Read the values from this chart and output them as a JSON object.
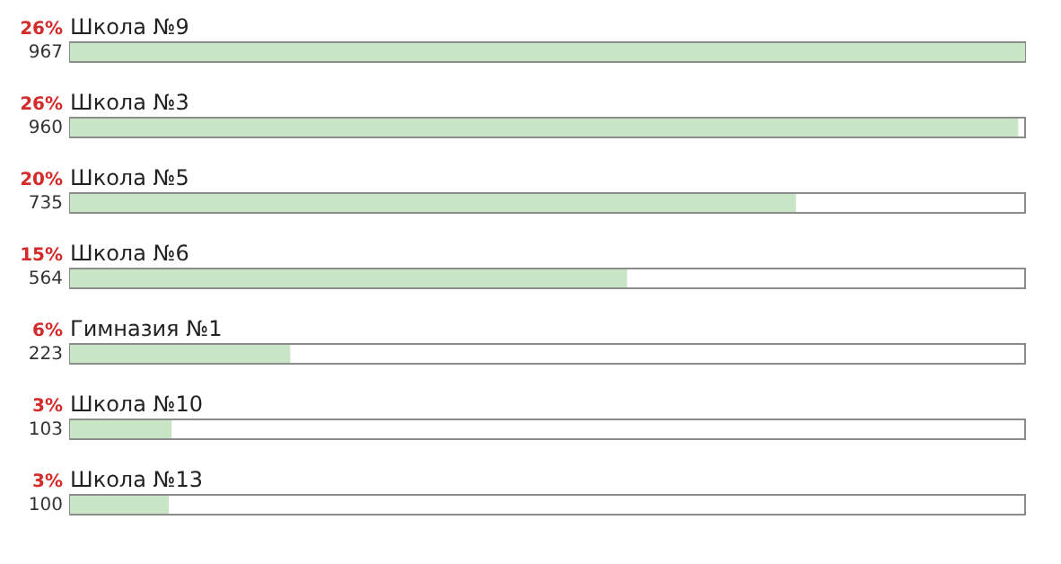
{
  "chart_data": {
    "type": "bar",
    "orientation": "horizontal",
    "categories": [
      "Школа №9",
      "Школа №3",
      "Школа №5",
      "Школа №6",
      "Гимназия №1",
      "Школа №10",
      "Школа №13"
    ],
    "values": [
      967,
      960,
      735,
      564,
      223,
      103,
      100
    ],
    "value_labels": [
      "967",
      "960",
      "735",
      "564",
      "223",
      "103",
      "100"
    ],
    "annotations": [
      "26%",
      "26%",
      "20%",
      "15%",
      "6%",
      "3%",
      "3%"
    ],
    "color": "#c8e6c5",
    "tick_labels": false
  }
}
